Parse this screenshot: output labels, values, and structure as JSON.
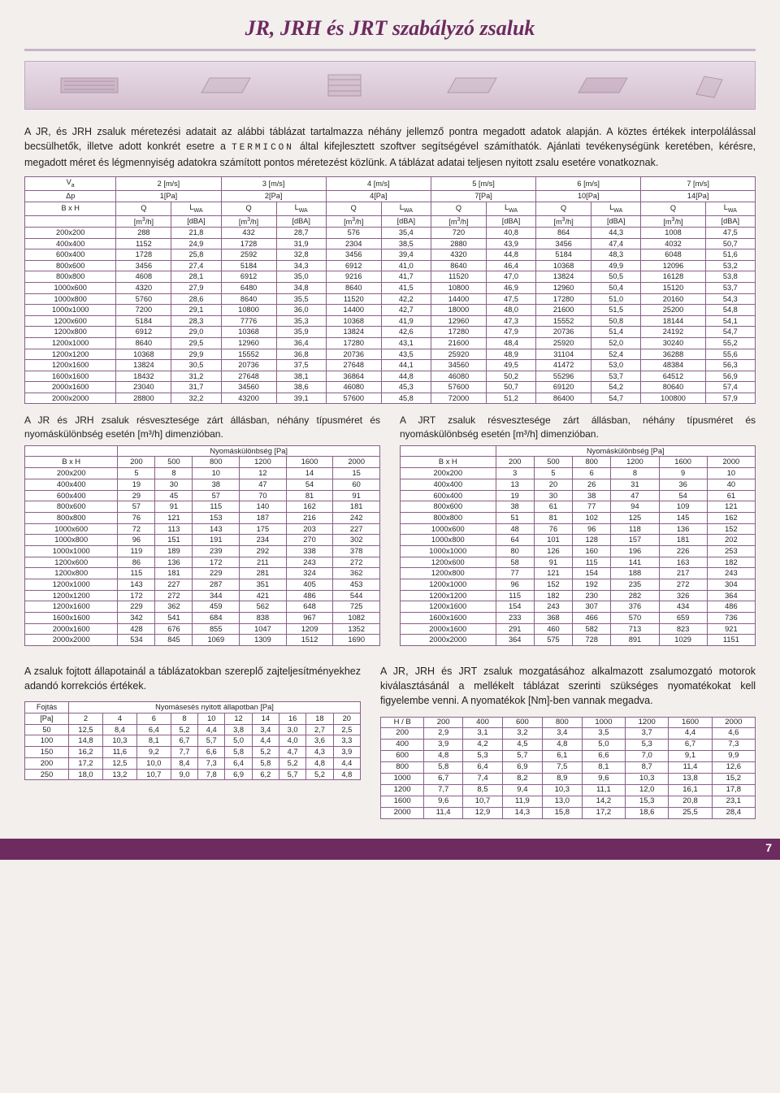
{
  "title": "JR, JRH és JRT szabályzó zsaluk",
  "intro": {
    "p1": "A JR, és JRH zsaluk méretezési adatait az alábbi táblázat tartalmazza néhány jellemző pontra megadott adatok alapján. A köztes értékek interpolálással becsülhetők, illetve adott konkrét esetre a ",
    "termicon": "TERMICON",
    "p1b": " által kifejlesztett szoftver segítségével számíthatók. Ajánlati tevékenységünk keretében, kérésre, megadott méret és légmennyiség adatokra számított pontos méretezést közlünk. A táblázat adatai teljesen nyitott zsalu esetére vonatkoznak."
  },
  "main_table": {
    "va_label": "Vₐ",
    "dp_label": "Δp",
    "bxh_label": "B x H",
    "q_label": "Q",
    "lwa_label": "L_WA",
    "unit_q": "[m³/h]",
    "unit_l": "[dBA]",
    "speeds": [
      "2 [m/s]",
      "3 [m/s]",
      "4 [m/s]",
      "5 [m/s]",
      "6 [m/s]",
      "7 [m/s]"
    ],
    "pressures": [
      "1[Pa]",
      "2[Pa]",
      "4[Pa]",
      "7[Pa]",
      "10[Pa]",
      "14[Pa]"
    ],
    "rows": [
      [
        "200x200",
        "288",
        "21,8",
        "432",
        "28,7",
        "576",
        "35,4",
        "720",
        "40,8",
        "864",
        "44,3",
        "1008",
        "47,5"
      ],
      [
        "400x400",
        "1152",
        "24,9",
        "1728",
        "31,9",
        "2304",
        "38,5",
        "2880",
        "43,9",
        "3456",
        "47,4",
        "4032",
        "50,7"
      ],
      [
        "600x400",
        "1728",
        "25,8",
        "2592",
        "32,8",
        "3456",
        "39,4",
        "4320",
        "44,8",
        "5184",
        "48,3",
        "6048",
        "51,6"
      ],
      [
        "800x600",
        "3456",
        "27,4",
        "5184",
        "34,3",
        "6912",
        "41,0",
        "8640",
        "46,4",
        "10368",
        "49,9",
        "12096",
        "53,2"
      ],
      [
        "800x800",
        "4608",
        "28,1",
        "6912",
        "35,0",
        "9216",
        "41,7",
        "11520",
        "47,0",
        "13824",
        "50,5",
        "16128",
        "53,8"
      ],
      [
        "1000x600",
        "4320",
        "27,9",
        "6480",
        "34,8",
        "8640",
        "41,5",
        "10800",
        "46,9",
        "12960",
        "50,4",
        "15120",
        "53,7"
      ],
      [
        "1000x800",
        "5760",
        "28,6",
        "8640",
        "35,5",
        "11520",
        "42,2",
        "14400",
        "47,5",
        "17280",
        "51,0",
        "20160",
        "54,3"
      ],
      [
        "1000x1000",
        "7200",
        "29,1",
        "10800",
        "36,0",
        "14400",
        "42,7",
        "18000",
        "48,0",
        "21600",
        "51,5",
        "25200",
        "54,8"
      ],
      [
        "1200x600",
        "5184",
        "28,3",
        "7776",
        "35,3",
        "10368",
        "41,9",
        "12960",
        "47,3",
        "15552",
        "50,8",
        "18144",
        "54,1"
      ],
      [
        "1200x800",
        "6912",
        "29,0",
        "10368",
        "35,9",
        "13824",
        "42,6",
        "17280",
        "47,9",
        "20736",
        "51,4",
        "24192",
        "54,7"
      ],
      [
        "1200x1000",
        "8640",
        "29,5",
        "12960",
        "36,4",
        "17280",
        "43,1",
        "21600",
        "48,4",
        "25920",
        "52,0",
        "30240",
        "55,2"
      ],
      [
        "1200x1200",
        "10368",
        "29,9",
        "15552",
        "36,8",
        "20736",
        "43,5",
        "25920",
        "48,9",
        "31104",
        "52,4",
        "36288",
        "55,6"
      ],
      [
        "1200x1600",
        "13824",
        "30,5",
        "20736",
        "37,5",
        "27648",
        "44,1",
        "34560",
        "49,5",
        "41472",
        "53,0",
        "48384",
        "56,3"
      ],
      [
        "1600x1600",
        "18432",
        "31,2",
        "27648",
        "38,1",
        "36864",
        "44,8",
        "46080",
        "50,2",
        "55296",
        "53,7",
        "64512",
        "56,9"
      ],
      [
        "2000x1600",
        "23040",
        "31,7",
        "34560",
        "38,6",
        "46080",
        "45,3",
        "57600",
        "50,7",
        "69120",
        "54,2",
        "80640",
        "57,4"
      ],
      [
        "2000x2000",
        "28800",
        "32,2",
        "43200",
        "39,1",
        "57600",
        "45,8",
        "72000",
        "51,2",
        "86400",
        "54,7",
        "100800",
        "57,9"
      ]
    ]
  },
  "loss_left": {
    "caption": "A JR és JRH zsaluk résvesztesége zárt állásban, néhány típusméret és nyomáskülönbség esetén [m³/h] dimenzióban.",
    "header": "Nyomáskülönbség [Pa]",
    "bxh": "B x H",
    "cols": [
      "200",
      "500",
      "800",
      "1200",
      "1600",
      "2000"
    ],
    "rows": [
      [
        "200x200",
        "5",
        "8",
        "10",
        "12",
        "14",
        "15"
      ],
      [
        "400x400",
        "19",
        "30",
        "38",
        "47",
        "54",
        "60"
      ],
      [
        "600x400",
        "29",
        "45",
        "57",
        "70",
        "81",
        "91"
      ],
      [
        "800x600",
        "57",
        "91",
        "115",
        "140",
        "162",
        "181"
      ],
      [
        "800x800",
        "76",
        "121",
        "153",
        "187",
        "216",
        "242"
      ],
      [
        "1000x600",
        "72",
        "113",
        "143",
        "175",
        "203",
        "227"
      ],
      [
        "1000x800",
        "96",
        "151",
        "191",
        "234",
        "270",
        "302"
      ],
      [
        "1000x1000",
        "119",
        "189",
        "239",
        "292",
        "338",
        "378"
      ],
      [
        "1200x600",
        "86",
        "136",
        "172",
        "211",
        "243",
        "272"
      ],
      [
        "1200x800",
        "115",
        "181",
        "229",
        "281",
        "324",
        "362"
      ],
      [
        "1200x1000",
        "143",
        "227",
        "287",
        "351",
        "405",
        "453"
      ],
      [
        "1200x1200",
        "172",
        "272",
        "344",
        "421",
        "486",
        "544"
      ],
      [
        "1200x1600",
        "229",
        "362",
        "459",
        "562",
        "648",
        "725"
      ],
      [
        "1600x1600",
        "342",
        "541",
        "684",
        "838",
        "967",
        "1082"
      ],
      [
        "2000x1600",
        "428",
        "676",
        "855",
        "1047",
        "1209",
        "1352"
      ],
      [
        "2000x2000",
        "534",
        "845",
        "1069",
        "1309",
        "1512",
        "1690"
      ]
    ]
  },
  "loss_right": {
    "caption": "A JRT zsaluk résvesztesége zárt állásban, néhány típusméret és nyomáskülönbség esetén [m³/h] dimenzióban.",
    "header": "Nyomáskülönbség [Pa]",
    "bxh": "B x H",
    "cols": [
      "200",
      "500",
      "800",
      "1200",
      "1600",
      "2000"
    ],
    "rows": [
      [
        "200x200",
        "3",
        "5",
        "6",
        "8",
        "9",
        "10"
      ],
      [
        "400x400",
        "13",
        "20",
        "26",
        "31",
        "36",
        "40"
      ],
      [
        "600x400",
        "19",
        "30",
        "38",
        "47",
        "54",
        "61"
      ],
      [
        "800x600",
        "38",
        "61",
        "77",
        "94",
        "109",
        "121"
      ],
      [
        "800x800",
        "51",
        "81",
        "102",
        "125",
        "145",
        "162"
      ],
      [
        "1000x600",
        "48",
        "76",
        "96",
        "118",
        "136",
        "152"
      ],
      [
        "1000x800",
        "64",
        "101",
        "128",
        "157",
        "181",
        "202"
      ],
      [
        "1000x1000",
        "80",
        "126",
        "160",
        "196",
        "226",
        "253"
      ],
      [
        "1200x600",
        "58",
        "91",
        "115",
        "141",
        "163",
        "182"
      ],
      [
        "1200x800",
        "77",
        "121",
        "154",
        "188",
        "217",
        "243"
      ],
      [
        "1200x1000",
        "96",
        "152",
        "192",
        "235",
        "272",
        "304"
      ],
      [
        "1200x1200",
        "115",
        "182",
        "230",
        "282",
        "326",
        "364"
      ],
      [
        "1200x1600",
        "154",
        "243",
        "307",
        "376",
        "434",
        "486"
      ],
      [
        "1600x1600",
        "233",
        "368",
        "466",
        "570",
        "659",
        "736"
      ],
      [
        "2000x1600",
        "291",
        "460",
        "582",
        "713",
        "823",
        "921"
      ],
      [
        "2000x2000",
        "364",
        "575",
        "728",
        "891",
        "1029",
        "1151"
      ]
    ]
  },
  "fojtas": {
    "caption": "A zsaluk fojtott állapotainál a táblázatokban szereplő zajteljesítményekhez adandó korrekciós értékek.",
    "h1": "Fojtás",
    "h2": "Nyomásesés nyitott állapotban [Pa]",
    "rowlabel": "[Pa]",
    "cols": [
      "2",
      "4",
      "6",
      "8",
      "10",
      "12",
      "14",
      "16",
      "18",
      "20"
    ],
    "rows": [
      [
        "50",
        "12,5",
        "8,4",
        "6,4",
        "5,2",
        "4,4",
        "3,8",
        "3,4",
        "3,0",
        "2,7",
        "2,5"
      ],
      [
        "100",
        "14,8",
        "10,3",
        "8,1",
        "6,7",
        "5,7",
        "5,0",
        "4,4",
        "4,0",
        "3,6",
        "3,3"
      ],
      [
        "150",
        "16,2",
        "11,6",
        "9,2",
        "7,7",
        "6,6",
        "5,8",
        "5,2",
        "4,7",
        "4,3",
        "3,9"
      ],
      [
        "200",
        "17,2",
        "12,5",
        "10,0",
        "8,4",
        "7,3",
        "6,4",
        "5,8",
        "5,2",
        "4,8",
        "4,4"
      ],
      [
        "250",
        "18,0",
        "13,2",
        "10,7",
        "9,0",
        "7,8",
        "6,9",
        "6,2",
        "5,7",
        "5,2",
        "4,8"
      ]
    ]
  },
  "torque": {
    "caption": "A JR, JRH és JRT zsaluk mozgatásához alkalmazott zsalumozgató motorok kiválasztásánál a mellékelt táblázat szerinti szükséges nyomatékokat kell figyelembe venni. A nyomatékok [Nm]-ben vannak megadva.",
    "row_h": "H / B",
    "cols": [
      "200",
      "400",
      "600",
      "800",
      "1000",
      "1200",
      "1600",
      "2000"
    ],
    "rows": [
      [
        "200",
        "2,9",
        "3,1",
        "3,2",
        "3,4",
        "3,5",
        "3,7",
        "4,4",
        "4,6"
      ],
      [
        "400",
        "3,9",
        "4,2",
        "4,5",
        "4,8",
        "5,0",
        "5,3",
        "6,7",
        "7,3"
      ],
      [
        "600",
        "4,8",
        "5,3",
        "5,7",
        "6,1",
        "6,6",
        "7,0",
        "9,1",
        "9,9"
      ],
      [
        "800",
        "5,8",
        "6,4",
        "6,9",
        "7,5",
        "8,1",
        "8,7",
        "11,4",
        "12,6"
      ],
      [
        "1000",
        "6,7",
        "7,4",
        "8,2",
        "8,9",
        "9,6",
        "10,3",
        "13,8",
        "15,2"
      ],
      [
        "1200",
        "7,7",
        "8,5",
        "9,4",
        "10,3",
        "11,1",
        "12,0",
        "16,1",
        "17,8"
      ],
      [
        "1600",
        "9,6",
        "10,7",
        "11,9",
        "13,0",
        "14,2",
        "15,3",
        "20,8",
        "23,1"
      ],
      [
        "2000",
        "11,4",
        "12,9",
        "14,3",
        "15,8",
        "17,2",
        "18,6",
        "25,5",
        "28,4"
      ]
    ]
  },
  "page_number": "7"
}
